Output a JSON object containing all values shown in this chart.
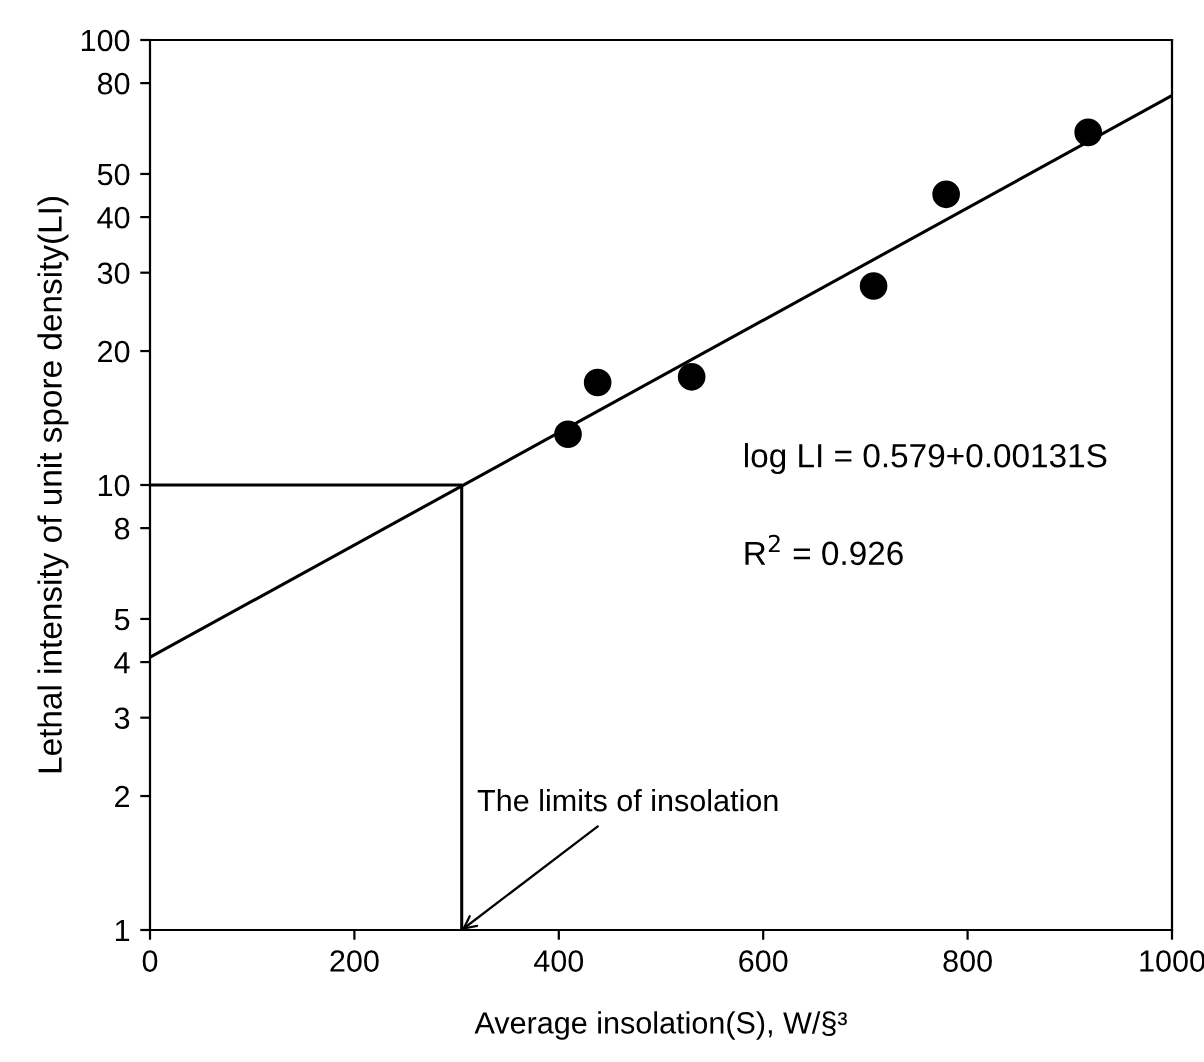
{
  "chart_data": {
    "type": "scatter",
    "xlabel": "Average insolation(S), W/§³",
    "ylabel": "Lethal intensity of unit spore density(LI)",
    "log": "y",
    "xlim": [
      0,
      1000
    ],
    "xticks": [
      0,
      200,
      400,
      600,
      800,
      1000
    ],
    "ylim": [
      1,
      100
    ],
    "yticks": [
      1,
      2,
      3,
      4,
      5,
      8,
      10,
      20,
      30,
      40,
      50,
      80,
      100
    ],
    "grid": false,
    "series": [
      {
        "color": "#000000",
        "marker": "circle",
        "x": [
          409,
          438,
          530,
          708,
          779,
          918
        ],
        "values": [
          13,
          17,
          17.5,
          28,
          45,
          62
        ]
      },
      {
        "type": "line",
        "color": "#000000",
        "marker": "none",
        "line_style": "solid",
        "x": [
          0,
          1000
        ],
        "values": [
          4.1,
          75
        ]
      },
      {
        "type": "line",
        "color": "#000000",
        "marker": "none",
        "line_style": "solid",
        "x": [
          0,
          305,
          305
        ],
        "values": [
          10,
          10,
          1
        ]
      }
    ],
    "annotations": [
      "log LI = 0.579+0.00131S",
      "R$^{2}$ = 0.926",
      {
        "text": "The limits of insolation",
        "x": 305,
        "y": 1
      }
    ]
  }
}
